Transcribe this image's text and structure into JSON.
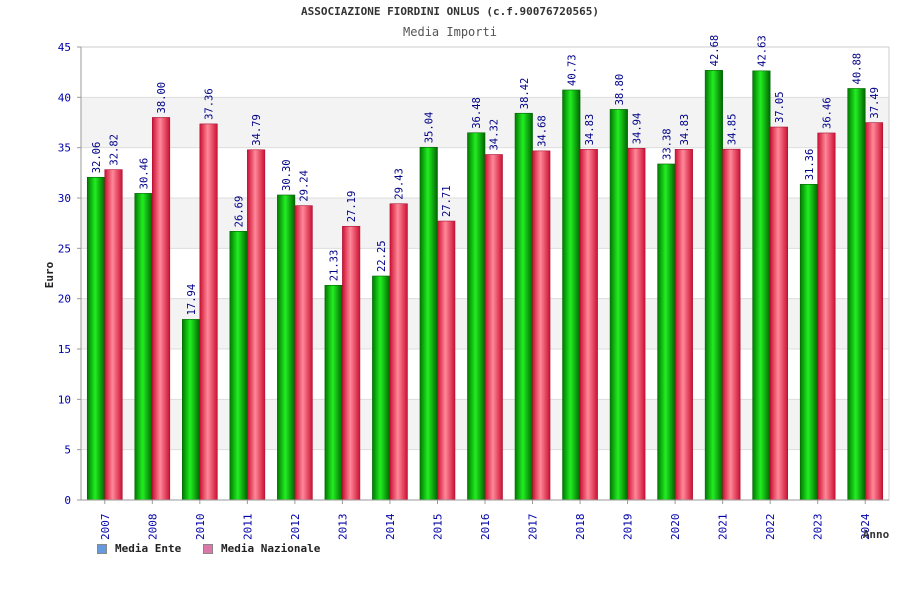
{
  "header": {
    "title": "ASSOCIAZIONE FIORDINI ONLUS (c.f.90076720565)",
    "subtitle": "Media Importi"
  },
  "legend": {
    "items": [
      {
        "label": "Media Ente",
        "color": "#6699dd"
      },
      {
        "label": "Media Nazionale",
        "color": "#dd77aa"
      }
    ]
  },
  "colors": {
    "ente_bar": "#00cc00",
    "nazionale_bar": "#ee3355",
    "label_text": "#000088",
    "tick_text": "#0000aa"
  },
  "chart_data": {
    "type": "bar",
    "title": "ASSOCIAZIONE FIORDINI ONLUS (c.f.90076720565)",
    "subtitle": "Media Importi",
    "xlabel": "Anno",
    "ylabel": "Euro",
    "ylim": [
      0,
      45
    ],
    "yticks": [
      0,
      5,
      10,
      15,
      20,
      25,
      30,
      35,
      40,
      45
    ],
    "grid": true,
    "legend_position": "bottom-left",
    "categories": [
      "2007",
      "2008",
      "2010",
      "2011",
      "2012",
      "2013",
      "2014",
      "2015",
      "2016",
      "2017",
      "2018",
      "2019",
      "2020",
      "2021",
      "2022",
      "2023",
      "2024"
    ],
    "series": [
      {
        "name": "Media Ente",
        "values": [
          32.06,
          30.46,
          17.94,
          26.69,
          30.3,
          21.33,
          22.25,
          35.04,
          36.48,
          38.42,
          40.73,
          38.8,
          33.38,
          42.68,
          42.63,
          31.36,
          40.88
        ],
        "labels": [
          "32.06",
          "30.46",
          "17.94",
          "26.69",
          "30.30",
          "21.33",
          "22.25",
          "35.04",
          "36.48",
          "38.42",
          "40.73",
          "38.80",
          "33.38",
          "42.68",
          "42.63",
          "31.36",
          "40.88"
        ]
      },
      {
        "name": "Media Nazionale",
        "values": [
          32.82,
          38.0,
          37.36,
          34.79,
          29.24,
          27.19,
          29.43,
          27.71,
          34.32,
          34.68,
          34.83,
          34.94,
          34.83,
          34.85,
          37.05,
          36.46,
          37.49
        ],
        "labels": [
          "32.82",
          "38.00",
          "37.36",
          "34.79",
          "29.24",
          "27.19",
          "29.43",
          "27.71",
          "34.32",
          "34.68",
          "34.83",
          "34.94",
          "34.83",
          "34.85",
          "37.05",
          "36.46",
          "37.49"
        ]
      }
    ]
  }
}
